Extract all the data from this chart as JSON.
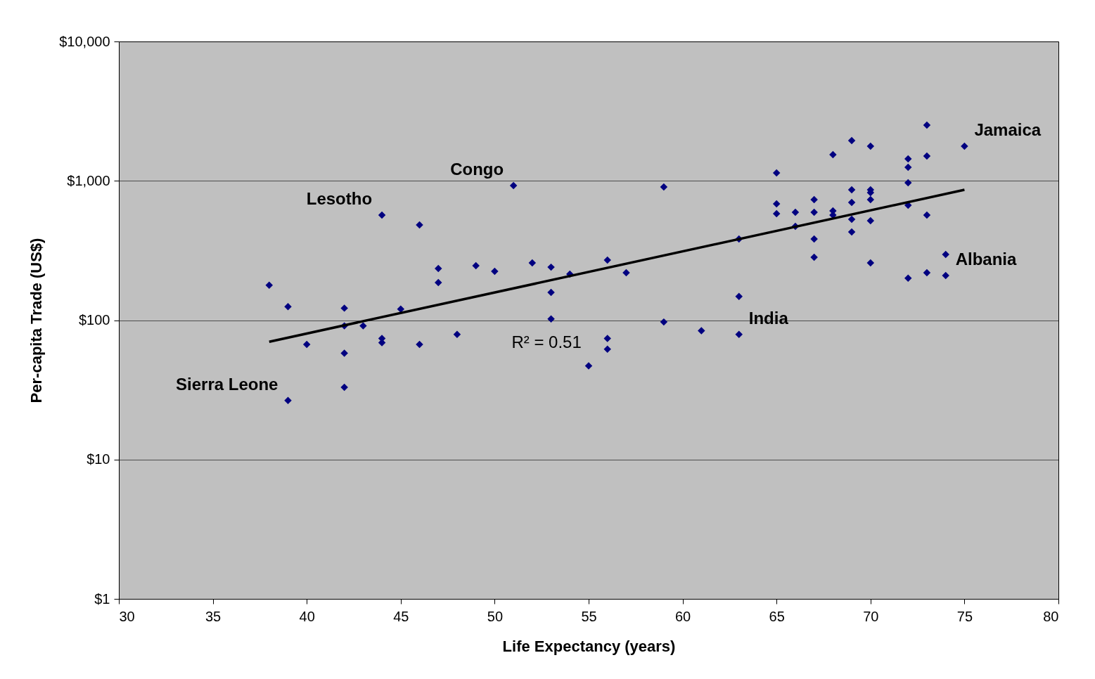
{
  "chart_data": {
    "type": "scatter",
    "xlabel": "Life Expectancy (years)",
    "ylabel": "Per-capita Trade (US$)",
    "log": "y",
    "grid": "y",
    "xlim": [
      30,
      80
    ],
    "xticks": [
      30,
      35,
      40,
      45,
      50,
      55,
      60,
      65,
      70,
      75,
      80
    ],
    "ylim": [
      1,
      10000
    ],
    "yticks": [
      {
        "value": 1,
        "label": "$1"
      },
      {
        "value": 10,
        "label": "$10"
      },
      {
        "value": 100,
        "label": "$100"
      },
      {
        "value": 1000,
        "label": "$1,000"
      },
      {
        "value": 10000,
        "label": "$10,000"
      }
    ],
    "series": [
      {
        "marker": "diamond",
        "color": "#000080",
        "x": [
          38,
          39,
          39,
          40,
          42,
          42,
          42,
          42,
          43,
          44,
          44,
          44,
          45,
          46,
          46,
          47,
          47,
          48,
          49,
          50,
          51,
          52,
          53,
          53,
          53,
          54,
          55,
          56,
          56,
          56,
          57,
          59,
          59,
          61,
          63,
          63,
          63,
          65,
          65,
          65,
          66,
          66,
          67,
          67,
          67,
          67,
          68,
          68,
          68,
          69,
          69,
          69,
          69,
          69,
          70,
          70,
          70,
          70,
          70,
          70,
          72,
          72,
          72,
          72,
          72,
          73,
          73,
          73,
          73,
          74,
          74,
          75
        ],
        "values": [
          178,
          125,
          26.5,
          67,
          122,
          91,
          58,
          33,
          91,
          568,
          74,
          69,
          120,
          483,
          67,
          235,
          186,
          79,
          246,
          224,
          925,
          258,
          240,
          158,
          102,
          214,
          47,
          270,
          74,
          62,
          219,
          903,
          97,
          84,
          382,
          148,
          79,
          1140,
          683,
          581,
          595,
          471,
          733,
          595,
          382,
          283,
          1540,
          609,
          568,
          1945,
          862,
          700,
          530,
          430,
          1770,
          862,
          824,
          733,
          517,
          258,
          1437,
          1250,
          969,
          668,
          200,
          2510,
          1506,
          568,
          219,
          296,
          209,
          1770
        ]
      },
      {
        "type": "line",
        "color": "#000000",
        "line_style": "solid",
        "x": [
          38,
          75
        ],
        "values": [
          70,
          862
        ]
      }
    ],
    "annotations": [
      {
        "text": "Congo",
        "x": 51,
        "y": 925
      },
      {
        "text": "Lesotho",
        "x": 44,
        "y": 568
      },
      {
        "text": "Sierra Leone",
        "x": 39,
        "y": 26.5
      },
      {
        "text": "Jamaica",
        "x": 75,
        "y": 1770
      },
      {
        "text": "Albania",
        "x": 74,
        "y": 209
      },
      {
        "text": "India",
        "x": 63,
        "y": 79
      },
      "R² = 0.51"
    ]
  }
}
